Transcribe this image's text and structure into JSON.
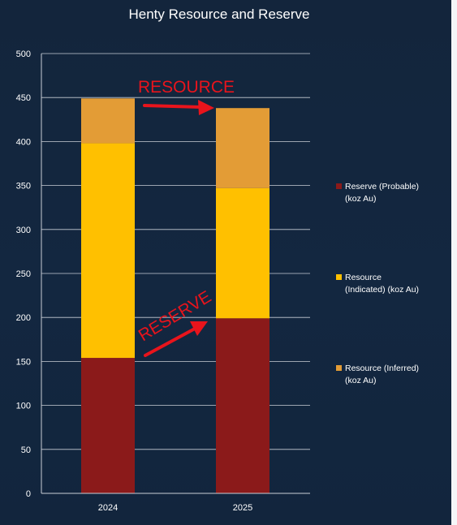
{
  "chart_data": {
    "type": "bar",
    "stacked": true,
    "title": "Henty Resource and Reserve",
    "categories": [
      "2024",
      "2025"
    ],
    "series": [
      {
        "name": "Reserve (Probable) (koz Au)",
        "values": [
          154,
          199
        ],
        "color": "#8b1a1a"
      },
      {
        "name": "Resource (Indicated) (koz Au)",
        "values": [
          244,
          148
        ],
        "color": "#ffc000"
      },
      {
        "name": "Resource (Inferred) (koz Au)",
        "values": [
          51,
          91
        ],
        "color": "#e39c36"
      }
    ],
    "ylim": [
      0,
      500
    ],
    "yticks": [
      0,
      50,
      100,
      150,
      200,
      250,
      300,
      350,
      400,
      450,
      500
    ],
    "grid": true,
    "legend_position": "right",
    "annotations": [
      {
        "text": "RESOURCE",
        "color": "#e8141c"
      },
      {
        "text": "RESERVE",
        "color": "#e8141c"
      }
    ],
    "background": "#132740"
  }
}
